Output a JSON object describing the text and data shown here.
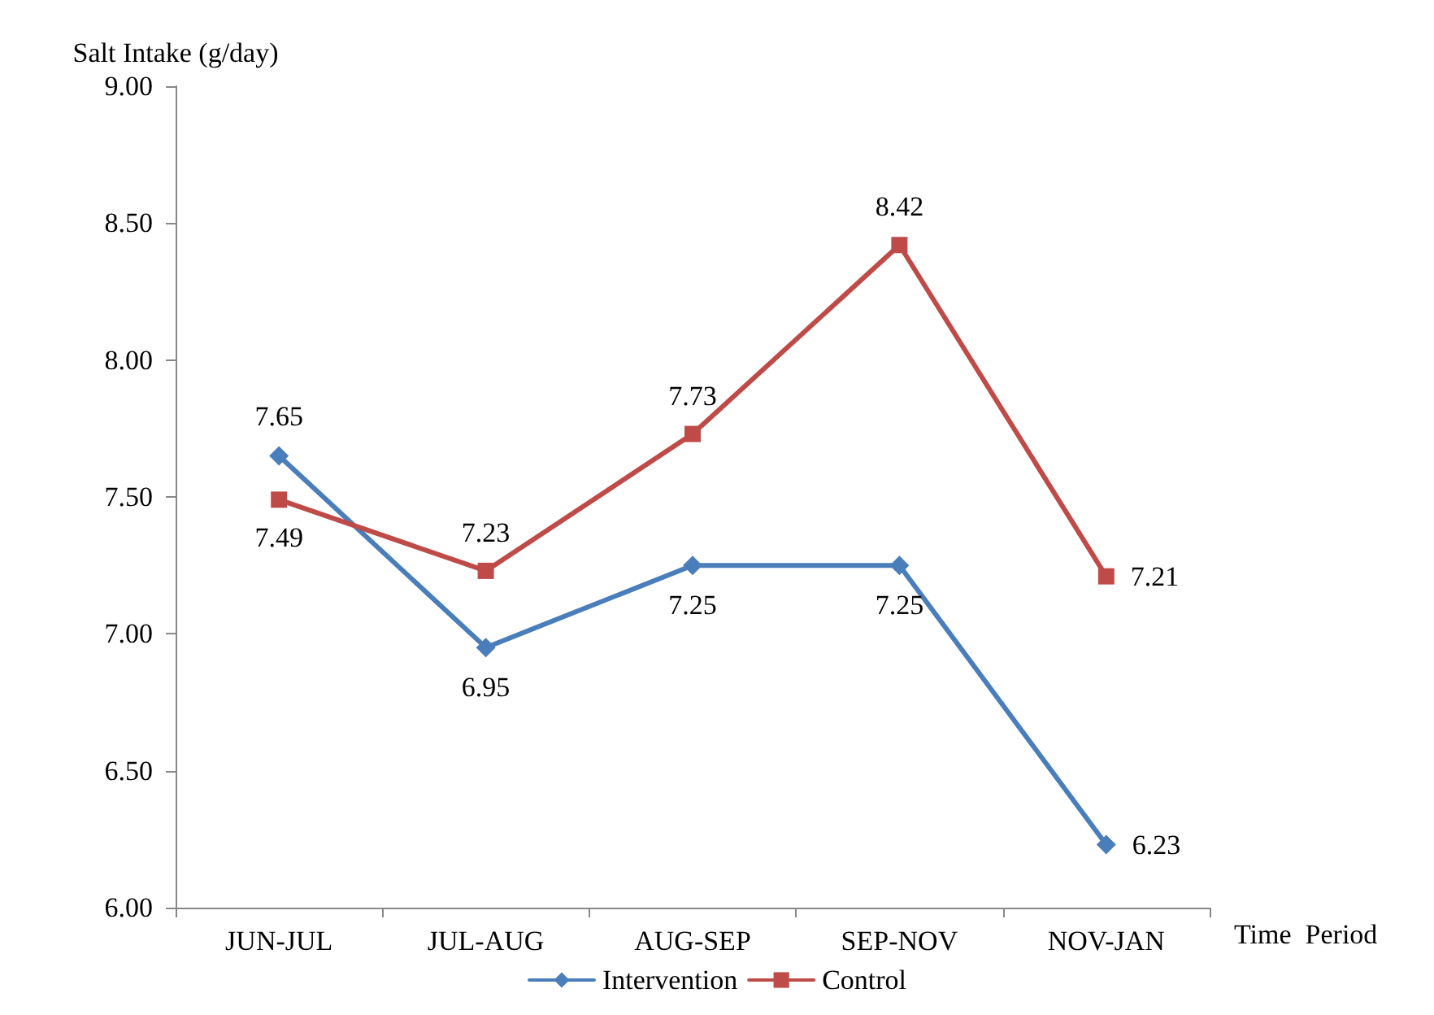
{
  "chart_data": {
    "type": "line",
    "ylabel": "Salt Intake (g/day)",
    "xlabel": "Time  Period",
    "categories": [
      "JUN-JUL",
      "JUL-AUG",
      "AUG-SEP",
      "SEP-NOV",
      "NOV-JAN"
    ],
    "series": [
      {
        "name": "Intervention",
        "color": "#4a7ebb",
        "marker": "diamond",
        "values": [
          7.65,
          6.95,
          7.25,
          7.25,
          6.23
        ]
      },
      {
        "name": "Control",
        "color": "#be4b48",
        "marker": "square",
        "values": [
          7.49,
          7.23,
          7.73,
          8.42,
          7.21
        ]
      }
    ],
    "ylim": [
      6,
      9
    ],
    "yticks": [
      {
        "value": 6,
        "label": "6.00"
      },
      {
        "value": 6.5,
        "label": "6.50"
      },
      {
        "value": 7,
        "label": "7.00"
      },
      {
        "value": 7.5,
        "label": "7.50"
      },
      {
        "value": 8,
        "label": "8.00"
      },
      {
        "value": 8.5,
        "label": "8.50"
      },
      {
        "value": 9,
        "label": "9.00"
      }
    ],
    "grid": false,
    "legend": "bottom",
    "data_labels": true,
    "line_style": "solid"
  }
}
